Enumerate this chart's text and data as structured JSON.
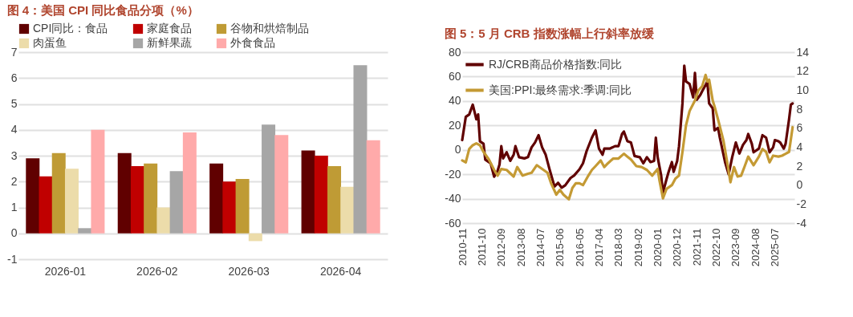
{
  "chart_data": [
    {
      "type": "bar",
      "title": "图 4：美国 CPI 同比食品分项（%）",
      "categories": [
        "2026-01",
        "2026-02",
        "2026-03",
        "2026-04"
      ],
      "series": [
        {
          "name": "CPI同比：食品",
          "color": "#600000",
          "values": [
            2.9,
            3.1,
            2.7,
            3.2
          ]
        },
        {
          "name": "家庭食品",
          "color": "#c00000",
          "values": [
            2.2,
            2.6,
            2.0,
            3.0
          ]
        },
        {
          "name": "谷物和烘焙制品",
          "color": "#bf9b35",
          "values": [
            3.1,
            2.7,
            2.1,
            2.6
          ]
        },
        {
          "name": "肉蛋鱼",
          "color": "#ecdcaa",
          "values": [
            2.5,
            1.0,
            -0.3,
            1.8
          ]
        },
        {
          "name": "新鲜果蔬",
          "color": "#a6a6a6",
          "values": [
            0.2,
            2.4,
            4.2,
            6.5
          ]
        },
        {
          "name": "外食食品",
          "color": "#ffaaaa",
          "values": [
            4.0,
            3.9,
            3.8,
            3.6
          ]
        }
      ],
      "ylim": [
        -1,
        7
      ],
      "yticks": [
        -1,
        0,
        1,
        2,
        3,
        4,
        5,
        6,
        7
      ],
      "grid": "y",
      "legend": "top"
    },
    {
      "type": "line",
      "title": "图 5：5 月 CRB 指数涨幅上行斜率放缓",
      "series": [
        {
          "name": "RJ/CRB商品价格指数:同比",
          "color": "#600000",
          "x": [
            "2010-11",
            "2011-01",
            "2011-03",
            "2011-05",
            "2011-07",
            "2011-08",
            "2011-09",
            "2011-11",
            "2011-12",
            "2012-03",
            "2012-05",
            "2012-07",
            "2012-08",
            "2012-09",
            "2012-10",
            "2012-12",
            "2013-02",
            "2013-04",
            "2013-05",
            "2013-07",
            "2013-10",
            "2013-12",
            "2014-02",
            "2014-04",
            "2014-06",
            "2014-08",
            "2014-10",
            "2014-12",
            "2015-03",
            "2015-05",
            "2015-07",
            "2015-09",
            "2015-12",
            "2016-02",
            "2016-05",
            "2016-07",
            "2016-09",
            "2016-12",
            "2017-02",
            "2017-04",
            "2017-06",
            "2017-07",
            "2017-10",
            "2018-01",
            "2018-03",
            "2018-05",
            "2018-06",
            "2018-08",
            "2018-10",
            "2018-12",
            "2019-03",
            "2019-05",
            "2019-07",
            "2019-09",
            "2019-11",
            "2019-12",
            "2020-01",
            "2020-03",
            "2020-04",
            "2020-06",
            "2020-07",
            "2020-09",
            "2020-10",
            "2020-12",
            "2021-01",
            "2021-03",
            "2021-04",
            "2021-05",
            "2021-07",
            "2021-09",
            "2021-10",
            "2021-11",
            "2022-01",
            "2022-02",
            "2022-04",
            "2022-05",
            "2022-06",
            "2022-08",
            "2022-09",
            "2022-11",
            "2022-12",
            "2023-03",
            "2023-05",
            "2023-07",
            "2023-09",
            "2023-11",
            "2024-01",
            "2024-03",
            "2024-04",
            "2024-06",
            "2024-07",
            "2024-10",
            "2024-12",
            "2025-02",
            "2025-04",
            "2025-06",
            "2025-07",
            "2025-09",
            "2025-10",
            "2025-12",
            "2026-01",
            "2026-03",
            "2026-04",
            "2026-05"
          ],
          "values": [
            8,
            27,
            29,
            37,
            25,
            29,
            7,
            5,
            -8,
            -11,
            -22,
            -17,
            -12,
            3,
            -7,
            -2,
            -9,
            -4,
            3,
            -6,
            -7,
            -6,
            2,
            6,
            12,
            2,
            -4,
            -15,
            -30,
            -27,
            -31,
            -29,
            -23,
            -21,
            -16,
            -11,
            -1,
            10,
            16,
            1,
            -4,
            1,
            1,
            3,
            3,
            13,
            15,
            7,
            6,
            -5,
            -6,
            -11,
            -6,
            -10,
            -9,
            10,
            -6,
            -21,
            -35,
            -24,
            -19,
            -10,
            -18,
            -9,
            3,
            38,
            69,
            56,
            54,
            43,
            63,
            41,
            45,
            48,
            53,
            56,
            38,
            34,
            16,
            18,
            10,
            -10,
            -20,
            -6,
            6,
            -3,
            4,
            8,
            13,
            5,
            -2,
            1,
            12,
            10,
            -2,
            2,
            8,
            7,
            6,
            1,
            5,
            25,
            37,
            38
          ]
        },
        {
          "name": "美国:PPI:最终需求:季调:同比",
          "color": "#c49a34",
          "axis": "y2",
          "x": [
            "2010-11",
            "2011-01",
            "2011-03",
            "2011-05",
            "2011-07",
            "2011-09",
            "2011-11",
            "2012-02",
            "2012-05",
            "2012-07",
            "2012-09",
            "2012-12",
            "2013-04",
            "2013-06",
            "2013-09",
            "2013-12",
            "2014-02",
            "2014-05",
            "2014-08",
            "2014-11",
            "2015-01",
            "2015-04",
            "2015-06",
            "2015-08",
            "2015-11",
            "2016-01",
            "2016-03",
            "2016-05",
            "2016-07",
            "2016-10",
            "2016-12",
            "2017-02",
            "2017-05",
            "2017-07",
            "2017-09",
            "2017-12",
            "2018-03",
            "2018-06",
            "2018-08",
            "2018-10",
            "2019-01",
            "2019-04",
            "2019-07",
            "2019-10",
            "2020-01",
            "2020-02",
            "2020-04",
            "2020-06",
            "2020-09",
            "2020-11",
            "2021-01",
            "2021-03",
            "2021-05",
            "2021-07",
            "2021-10",
            "2021-12",
            "2022-02",
            "2022-04",
            "2022-05",
            "2022-06",
            "2022-08",
            "2022-09",
            "2022-11",
            "2023-02",
            "2023-04",
            "2023-06",
            "2023-08",
            "2023-10",
            "2023-12",
            "2024-02",
            "2024-04",
            "2024-07",
            "2024-10",
            "2024-12",
            "2025-02",
            "2025-04",
            "2025-06",
            "2025-09",
            "2025-11",
            "2026-01",
            "2026-03",
            "2026-05"
          ],
          "values": [
            2.6,
            2.4,
            3.8,
            4.2,
            4.4,
            4.2,
            3.5,
            2.7,
            1.6,
            1.0,
            1.7,
            1.6,
            0.9,
            1.9,
            1.0,
            1.2,
            1.3,
            2.1,
            1.7,
            1.3,
            0.2,
            -1.0,
            -0.5,
            -1.0,
            -1.5,
            -0.3,
            0.2,
            0.2,
            0.0,
            1.0,
            1.6,
            2.0,
            2.6,
            1.9,
            2.3,
            2.8,
            2.8,
            3.3,
            3.0,
            2.7,
            2.0,
            1.9,
            1.6,
            1.0,
            1.7,
            0.5,
            -1.4,
            -0.4,
            0.0,
            0.7,
            1.0,
            3.5,
            6.3,
            7.8,
            8.9,
            10.0,
            10.4,
            11.6,
            10.9,
            11.1,
            8.9,
            8.3,
            6.9,
            4.7,
            2.6,
            0.3,
            1.9,
            0.9,
            1.0,
            2.0,
            3.0,
            2.1,
            3.0,
            3.8,
            3.5,
            2.4,
            3.1,
            3.0,
            3.1,
            3.3,
            3.5,
            6.1
          ]
        }
      ],
      "xlim": [
        "2010-11",
        "2026-06"
      ],
      "xticks": [
        "2010-11",
        "2011-10",
        "2012-09",
        "2013-08",
        "2014-07",
        "2015-06",
        "2016-05",
        "2017-04",
        "2018-03",
        "2019-02",
        "2020-01",
        "2020-12",
        "2021-11",
        "2022-10",
        "2023-09",
        "2024-08",
        "2025-07"
      ],
      "ylim": [
        -60,
        80
      ],
      "yticks": [
        -60,
        -40,
        -20,
        0,
        20,
        40,
        60,
        80
      ],
      "y2lim": [
        -4,
        14
      ],
      "y2ticks": [
        -4,
        -2,
        0,
        2,
        4,
        6,
        8,
        10,
        12,
        14
      ],
      "grid": "y",
      "legend": "top left"
    }
  ]
}
